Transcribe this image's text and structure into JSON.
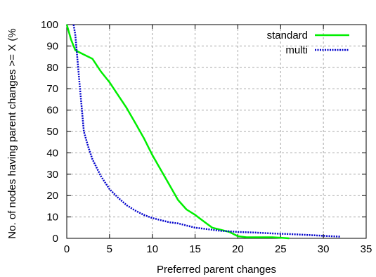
{
  "chart_data": {
    "type": "line",
    "title": "",
    "xlabel": "Preferred parent changes",
    "ylabel": "No. of nodes having parent changes >= X (%",
    "xlim": [
      0,
      35
    ],
    "ylim": [
      0,
      100
    ],
    "xticks": [
      0,
      5,
      10,
      15,
      20,
      25,
      30,
      35
    ],
    "yticks": [
      0,
      10,
      20,
      30,
      40,
      50,
      60,
      70,
      80,
      90,
      100
    ],
    "grid": true,
    "legend_position": "top-right",
    "series": [
      {
        "name": "standard",
        "color": "#00ee00",
        "style": "solid",
        "x": [
          0,
          0.5,
          1,
          2,
          3,
          4,
          5,
          6,
          7,
          8,
          9,
          10,
          11,
          12,
          13,
          14,
          15,
          16,
          17,
          18,
          19,
          20,
          21,
          22,
          23,
          24,
          25,
          26
        ],
        "y": [
          100,
          93,
          88,
          86,
          84,
          78,
          73,
          67,
          61,
          54,
          47,
          39,
          32,
          25,
          18,
          13.5,
          11,
          8,
          5,
          4,
          3,
          1,
          0.5,
          0.5,
          0.5,
          0.5,
          0.3,
          0
        ]
      },
      {
        "name": "multi",
        "color": "#0000cc",
        "style": "dotted",
        "x": [
          0.8,
          1,
          1.5,
          2,
          2.5,
          3,
          4,
          5,
          6,
          7,
          8,
          9,
          10,
          11,
          12,
          13,
          14,
          15,
          16,
          17,
          18,
          19,
          20,
          22,
          24,
          26,
          28,
          30,
          32
        ],
        "y": [
          100,
          95,
          72,
          50,
          43,
          37,
          29,
          23,
          19,
          15.5,
          13,
          11,
          9.5,
          8.5,
          7.5,
          7,
          6,
          5,
          4.5,
          4,
          3.5,
          3.3,
          3,
          2.7,
          2.3,
          2,
          1.6,
          1.2,
          0.8
        ]
      }
    ]
  }
}
